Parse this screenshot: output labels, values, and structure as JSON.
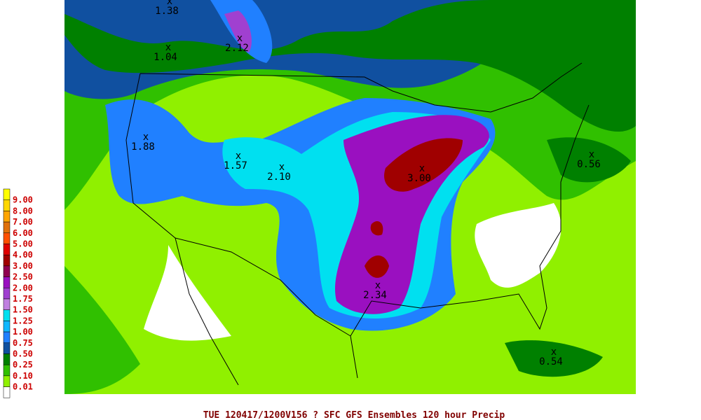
{
  "legend": {
    "items": [
      {
        "label": "9.00",
        "color": "#ffff00"
      },
      {
        "label": "8.00",
        "color": "#ffd700"
      },
      {
        "label": "7.00",
        "color": "#ffa500"
      },
      {
        "label": "6.00",
        "color": "#e0700a"
      },
      {
        "label": "5.00",
        "color": "#ff5000"
      },
      {
        "label": "4.00",
        "color": "#e00000"
      },
      {
        "label": "3.00",
        "color": "#a00000"
      },
      {
        "label": "2.50",
        "color": "#900050"
      },
      {
        "label": "2.00",
        "color": "#9a10c0"
      },
      {
        "label": "1.75",
        "color": "#a040d0"
      },
      {
        "label": "1.50",
        "color": "#c080e0"
      },
      {
        "label": "1.25",
        "color": "#00e0f0"
      },
      {
        "label": "1.00",
        "color": "#10b8ff"
      },
      {
        "label": "0.75",
        "color": "#2080ff"
      },
      {
        "label": "0.50",
        "color": "#1050a0"
      },
      {
        "label": "0.25",
        "color": "#008000"
      },
      {
        "label": "0.10",
        "color": "#30c000"
      },
      {
        "label": "0.01",
        "color": "#90f000"
      }
    ]
  },
  "annotations": {
    "marker": "x",
    "labels": [
      "1.38",
      "2.12",
      "1.04",
      "1.88",
      "1.57",
      "2.10",
      "3.00",
      "0.56",
      "0.54",
      "2.34"
    ]
  },
  "footer": "TUE 120417/1200V156  ? SFC GFS Ensembles 120 hour Precip"
}
